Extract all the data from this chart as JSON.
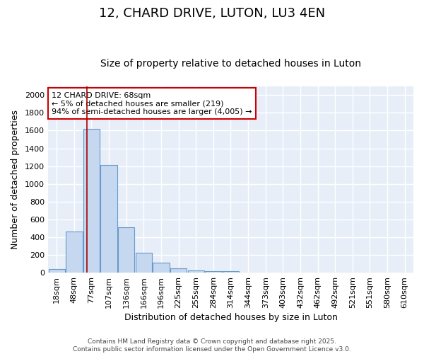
{
  "title": "12, CHARD DRIVE, LUTON, LU3 4EN",
  "subtitle": "Size of property relative to detached houses in Luton",
  "xlabel": "Distribution of detached houses by size in Luton",
  "ylabel": "Number of detached properties",
  "categories": [
    "18sqm",
    "48sqm",
    "77sqm",
    "107sqm",
    "136sqm",
    "166sqm",
    "196sqm",
    "225sqm",
    "255sqm",
    "284sqm",
    "314sqm",
    "344sqm",
    "373sqm",
    "403sqm",
    "432sqm",
    "462sqm",
    "492sqm",
    "521sqm",
    "551sqm",
    "580sqm",
    "610sqm"
  ],
  "values": [
    40,
    460,
    1620,
    1210,
    510,
    220,
    110,
    45,
    25,
    15,
    20,
    0,
    0,
    0,
    0,
    0,
    0,
    0,
    0,
    0,
    0
  ],
  "bar_color": "#c5d8ef",
  "bar_edge_color": "#6699cc",
  "vline_x": 1.72,
  "vline_color": "#aa0000",
  "annotation_text": "12 CHARD DRIVE: 68sqm\n← 5% of detached houses are smaller (219)\n94% of semi-detached houses are larger (4,005) →",
  "annotation_box_facecolor": "#ffffff",
  "annotation_box_edgecolor": "#cc0000",
  "ylim": [
    0,
    2100
  ],
  "yticks": [
    0,
    200,
    400,
    600,
    800,
    1000,
    1200,
    1400,
    1600,
    1800,
    2000
  ],
  "bg_color": "#e8eef8",
  "grid_color": "#ffffff",
  "fig_bg_color": "#ffffff",
  "footer1": "Contains HM Land Registry data © Crown copyright and database right 2025.",
  "footer2": "Contains public sector information licensed under the Open Government Licence v3.0.",
  "title_fontsize": 13,
  "subtitle_fontsize": 10,
  "axis_label_fontsize": 9,
  "tick_fontsize": 8,
  "annotation_fontsize": 8
}
